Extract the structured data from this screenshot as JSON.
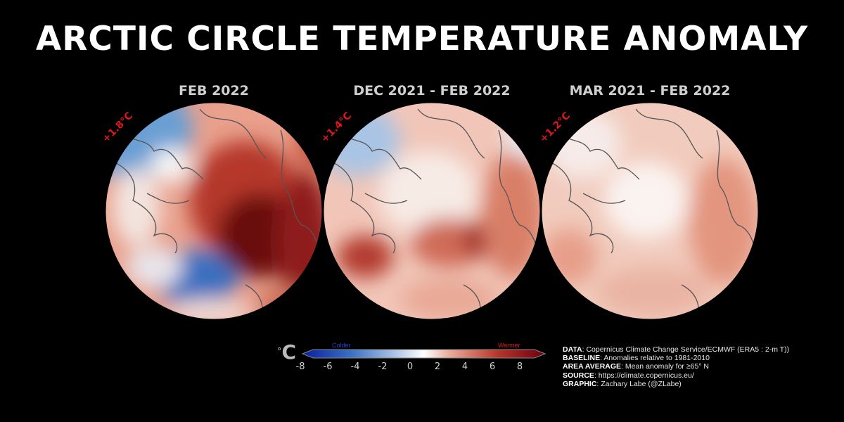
{
  "title": "ARCTIC CIRCLE TEMPERATURE ANOMALY",
  "panels": [
    {
      "title": "FEB 2022",
      "anomaly": "+1.8°C"
    },
    {
      "title": "DEC 2021 - FEB 2022",
      "anomaly": "+1.4°C"
    },
    {
      "title": "MAR 2021 - FEB 2022",
      "anomaly": "+1.2°C"
    }
  ],
  "colorbar": {
    "unit": "°C",
    "colder_label": "Colder",
    "warmer_label": "Warmer",
    "ticks": [
      "-8",
      "-6",
      "-4",
      "-2",
      "0",
      "2",
      "4",
      "6",
      "8"
    ],
    "range": [
      -8,
      8
    ],
    "colors": {
      "cold": "#0a1f9c",
      "neutral": "#ffffff",
      "warm": "#6b0010"
    }
  },
  "info": {
    "data_key": "DATA",
    "data_val": ": Copernicus Climate Change Service/ECMWF (ERA5 : 2-m T))",
    "baseline_key": "BASELINE",
    "baseline_val": ": Anomalies relative to 1981-2010",
    "area_key": "AREA AVERAGE",
    "area_val": ": Mean anomaly for ≥65° N",
    "source_key": "SOURCE",
    "source_val": ": https://climate.copernicus.eu/",
    "graphic_key": "GRAPHIC",
    "graphic_val": ": Zachary Labe (@ZLabe)"
  }
}
